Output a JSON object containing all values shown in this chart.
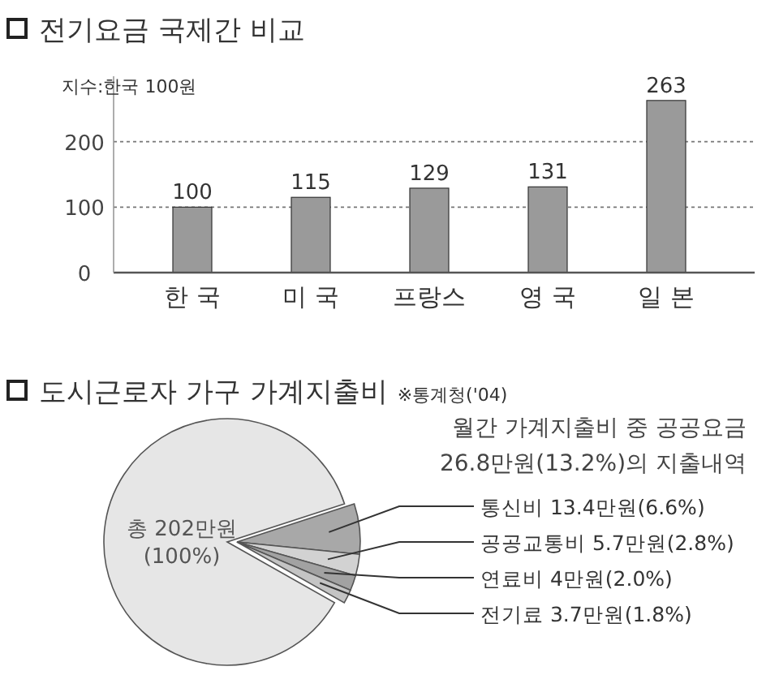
{
  "chart_data": [
    {
      "type": "bar",
      "title": "전기요금 국제간 비교",
      "categories": [
        "한 국",
        "미 국",
        "프랑스",
        "영 국",
        "일 본"
      ],
      "values": [
        100,
        115,
        129,
        131,
        263
      ],
      "color": "#9a9a9a",
      "ylim": [
        0,
        300
      ],
      "yticks": [
        0,
        100,
        200
      ],
      "grid": "y",
      "data_labels": true,
      "annotations": [
        "지수:한국 100원"
      ]
    },
    {
      "type": "pie",
      "title": "도시근로자 가구 가계지출비",
      "subtitle": "※통계청('04)",
      "categories": [
        null,
        "통신비 13.4만원(6.6%)",
        "공공교통비 5.7만원(2.8%)",
        "연료비 4만원(2.0%)",
        "전기료 3.7만원(1.8%)"
      ],
      "values": [
        86.8,
        6.6,
        2.8,
        2.0,
        1.8
      ],
      "colors": [
        "#e6e6e6",
        "#a8a8a8",
        "#d2d2d2",
        "#a2a2a2",
        "#c4c4c4"
      ],
      "annotations": [
        "총 202만원\n(100%)",
        "월간 가계지출비 중 공공요금\n26.8만원(13.2%)의 지출내역"
      ]
    }
  ]
}
